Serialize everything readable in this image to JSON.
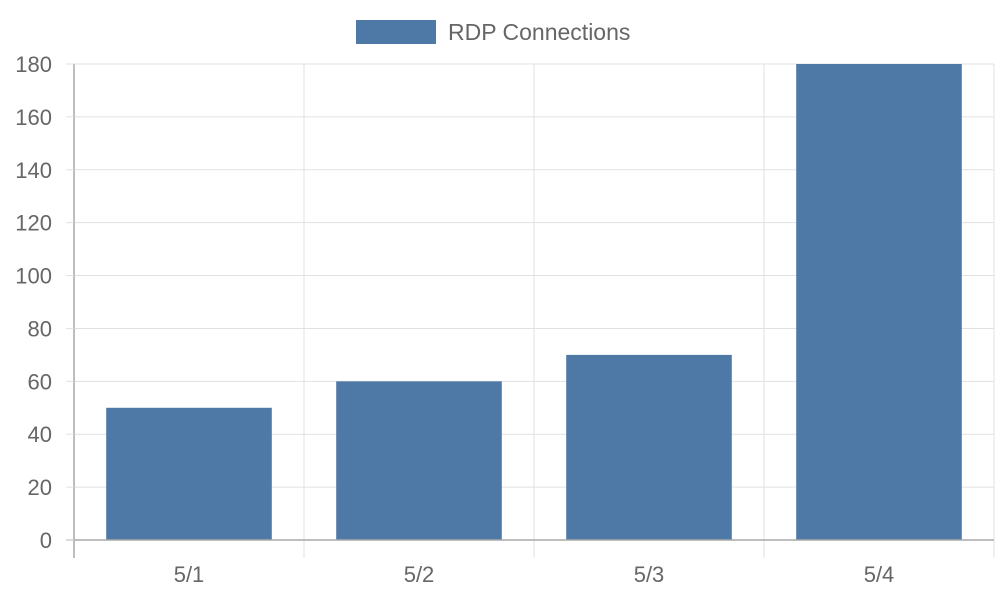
{
  "chart_data": {
    "type": "bar",
    "categories": [
      "5/1",
      "5/2",
      "5/3",
      "5/4"
    ],
    "series": [
      {
        "name": "RDP Connections",
        "values": [
          50,
          60,
          70,
          180
        ],
        "color": "#4e79a7"
      }
    ],
    "ylim": [
      0,
      180
    ],
    "yticks": [
      0,
      20,
      40,
      60,
      80,
      100,
      120,
      140,
      160,
      180
    ],
    "grid": true,
    "legend_position": "top-center"
  }
}
